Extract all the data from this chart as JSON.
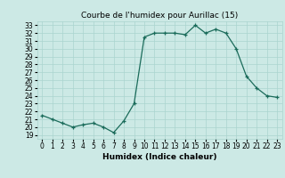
{
  "x": [
    0,
    1,
    2,
    3,
    4,
    5,
    6,
    7,
    8,
    9,
    10,
    11,
    12,
    13,
    14,
    15,
    16,
    17,
    18,
    19,
    20,
    21,
    22,
    23
  ],
  "y": [
    21.5,
    21.0,
    20.5,
    20.0,
    20.3,
    20.5,
    20.0,
    19.3,
    20.8,
    23.0,
    31.5,
    32.0,
    32.0,
    32.0,
    31.8,
    33.0,
    32.0,
    32.5,
    32.0,
    30.0,
    26.5,
    25.0,
    24.0,
    23.8
  ],
  "line_color": "#1a6b5a",
  "marker": "+",
  "marker_size": 3,
  "bg_color": "#cce9e5",
  "grid_color": "#aad4cf",
  "title": "Courbe de l'humidex pour Aurillac (15)",
  "xlabel": "Humidex (Indice chaleur)",
  "ylabel": "",
  "xlim": [
    -0.5,
    23.5
  ],
  "ylim": [
    18.5,
    33.5
  ],
  "yticks": [
    19,
    20,
    21,
    22,
    23,
    24,
    25,
    26,
    27,
    28,
    29,
    30,
    31,
    32,
    33
  ],
  "xticks": [
    0,
    1,
    2,
    3,
    4,
    5,
    6,
    7,
    8,
    9,
    10,
    11,
    12,
    13,
    14,
    15,
    16,
    17,
    18,
    19,
    20,
    21,
    22,
    23
  ],
  "tick_fontsize": 5.5,
  "label_fontsize": 6.5,
  "title_fontsize": 6.5
}
